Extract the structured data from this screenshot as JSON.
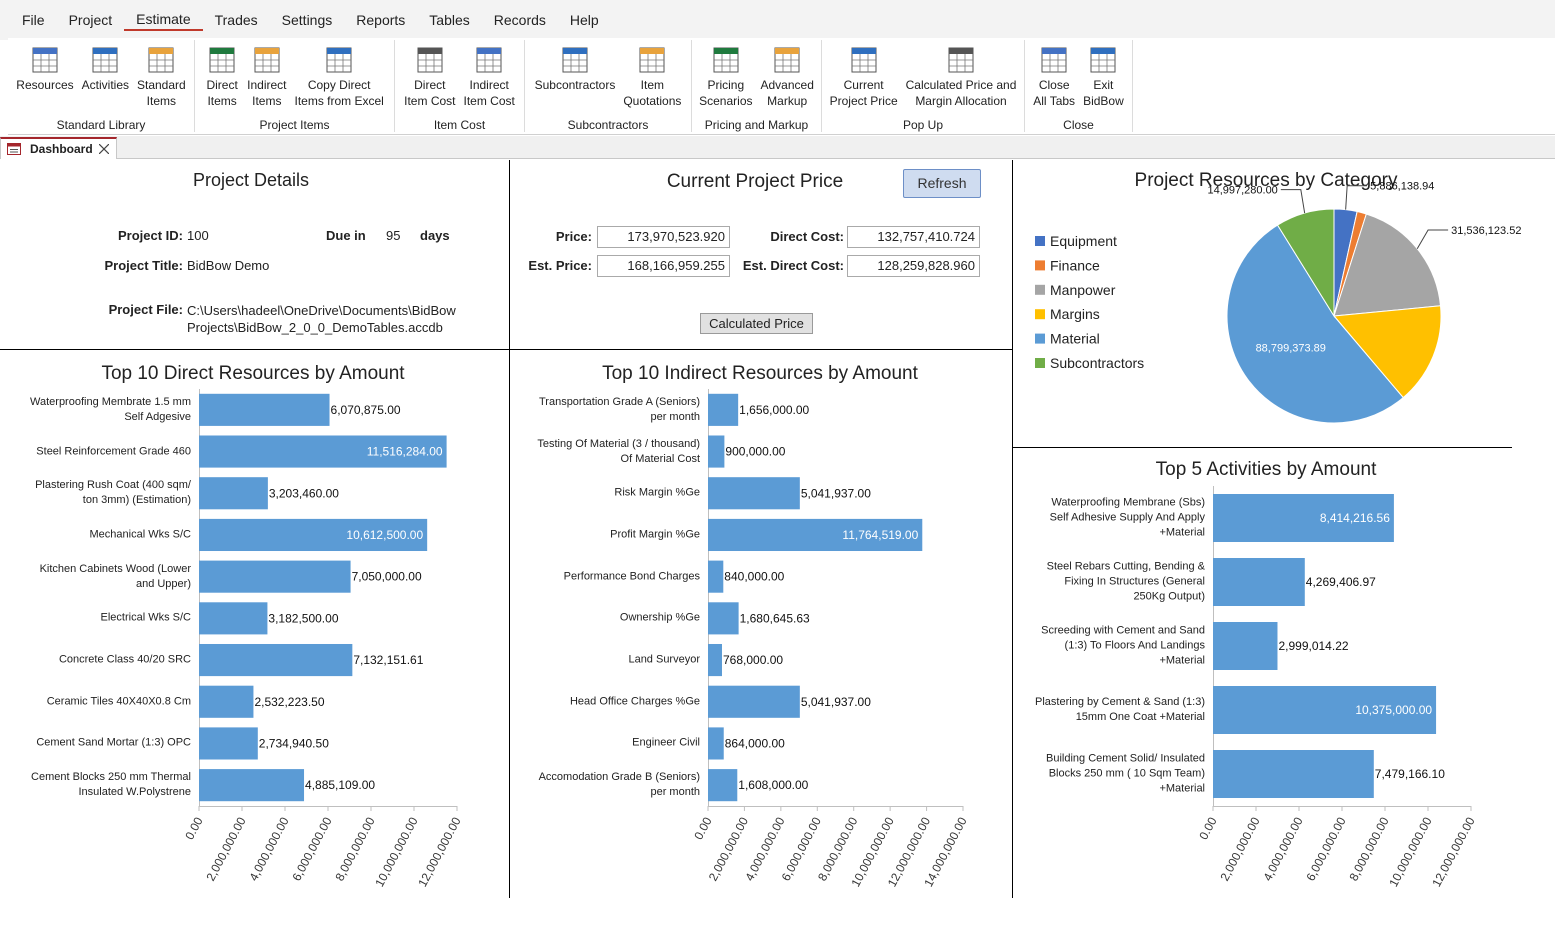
{
  "menu": [
    "File",
    "Project",
    "Estimate",
    "Trades",
    "Settings",
    "Reports",
    "Tables",
    "Records",
    "Help"
  ],
  "ribbon": {
    "groups": [
      {
        "label": "Standard Library",
        "buttons": [
          "Resources",
          "Activities",
          "Standard\nItems"
        ]
      },
      {
        "label": "Project Items",
        "buttons": [
          "Direct\nItems",
          "Indirect\nItems",
          "Copy Direct\nItems from Excel"
        ]
      },
      {
        "label": "Item Cost",
        "buttons": [
          "Direct\nItem Cost",
          "Indirect\nItem Cost"
        ]
      },
      {
        "label": "Subcontractors",
        "buttons": [
          "Subcontractors",
          "Item\nQuotations"
        ]
      },
      {
        "label": "Pricing and Markup",
        "buttons": [
          "Pricing\nScenarios",
          "Advanced\nMarkup"
        ]
      },
      {
        "label": "Pop Up",
        "buttons": [
          "Current\nProject Price",
          "Calculated Price and\nMargin Allocation"
        ]
      },
      {
        "label": "Close",
        "buttons": [
          "Close\nAll Tabs",
          "Exit\nBidBow"
        ]
      }
    ]
  },
  "tab": "Dashboard",
  "project_details": {
    "title": "Project Details",
    "id_label": "Project ID:",
    "id": 100,
    "due_label": "Due in",
    "due": 95,
    "due_unit": "days",
    "title_label": "Project Title:",
    "project_title": "BidBow Demo",
    "file_label": "Project File:",
    "file": "C:\\Users\\hadeel\\OneDrive\\Documents\\BidBow Projects\\BidBow_2_0_0_DemoTables.accdb"
  },
  "project_price": {
    "title": "Current Project Price",
    "refresh": "Refresh",
    "price_label": "Price:",
    "price": "173,970,523.920",
    "direct_cost_label": "Direct Cost:",
    "direct_cost": "132,757,410.724",
    "est_price_label": "Est. Price:",
    "est_price": "168,166,959.255",
    "est_direct_cost_label": "Est. Direct Cost:",
    "est_direct_cost": "128,259,828.960",
    "calculate": "Calculated Price"
  },
  "chart_data": [
    {
      "type": "pie",
      "title": "Project Resources by Category",
      "categories": [
        "Equipment",
        "Finance",
        "Manpower",
        "Margins",
        "Material",
        "Subcontractors"
      ],
      "values": [
        5886138.94,
        2400000,
        31536123.52,
        26000000,
        88799373.89,
        14997280.0
      ],
      "value_labels": [
        "5,886,138.94",
        null,
        "31,536,123.52",
        null,
        "88,799,373.89",
        "14,997,280.00"
      ],
      "colors": [
        "#4472c4",
        "#ed7d31",
        "#a5a5a5",
        "#ffc000",
        "#5b9bd5",
        "#70ad47"
      ],
      "legend": "left"
    },
    {
      "type": "bar",
      "orientation": "horizontal",
      "title": "Top 10 Direct Resources by Amount",
      "categories": [
        "Waterproofing Membrate 1.5 mm Self Adgesive",
        "Steel Reinforcement Grade 460",
        "Plastering Rush Coat (400 sqm/ ton 3mm) (Estimation)",
        "Mechanical Wks S/C",
        "Kitchen Cabinets Wood (Lower and Upper)",
        "Electrical Wks S/C",
        "Concrete Class 40/20 SRC",
        "Ceramic Tiles 40X40X0.8 Cm",
        "Cement Sand Mortar (1:3) OPC",
        "Cement Blocks 250 mm Thermal Insulated W.Polystrene"
      ],
      "values": [
        6070875.0,
        11516284.0,
        3203460.0,
        10612500.0,
        7050000.0,
        3182500.0,
        7132151.61,
        2532223.5,
        2734940.5,
        4885109.0
      ],
      "value_labels": [
        "6,070,875.00",
        "11,516,284.00",
        "3,203,460.00",
        "10,612,500.00",
        "7,050,000.00",
        "3,182,500.00",
        "7,132,151.61",
        "2,532,223.50",
        "2,734,940.50",
        "4,885,109.00"
      ],
      "color": "#5b9bd5",
      "xlim": [
        0,
        12000000
      ],
      "xticks": [
        {
          "value": 0,
          "label": "0.00"
        },
        {
          "value": 2000000,
          "label": "2,000,000.00"
        },
        {
          "value": 4000000,
          "label": "4,000,000.00"
        },
        {
          "value": 6000000,
          "label": "6,000,000.00"
        },
        {
          "value": 8000000,
          "label": "8,000,000.00"
        },
        {
          "value": 10000000,
          "label": "10,000,000.00"
        },
        {
          "value": 12000000,
          "label": "12,000,000.00"
        }
      ]
    },
    {
      "type": "bar",
      "orientation": "horizontal",
      "title": "Top 10 Indirect Resources by Amount",
      "categories": [
        "Transportation Grade A (Seniors) per month",
        "Testing Of Material (3 / thousand) Of Material Cost",
        "Risk Margin %Ge",
        "Profit Margin %Ge",
        "Performance Bond Charges",
        "Ownership %Ge",
        "Land Surveyor",
        "Head Office Charges %Ge",
        "Engineer Civil",
        "Accomodation Grade B (Seniors) per month"
      ],
      "values": [
        1656000.0,
        900000.0,
        5041937.0,
        11764519.0,
        840000.0,
        1680645.63,
        768000.0,
        5041937.0,
        864000.0,
        1608000.0
      ],
      "value_labels": [
        "1,656,000.00",
        "900,000.00",
        "5,041,937.00",
        "11,764,519.00",
        "840,000.00",
        "1,680,645.63",
        "768,000.00",
        "5,041,937.00",
        "864,000.00",
        "1,608,000.00"
      ],
      "color": "#5b9bd5",
      "xlim": [
        0,
        14000000
      ],
      "xticks": [
        {
          "value": 0,
          "label": "0.00"
        },
        {
          "value": 2000000,
          "label": "2,000,000.00"
        },
        {
          "value": 4000000,
          "label": "4,000,000.00"
        },
        {
          "value": 6000000,
          "label": "6,000,000.00"
        },
        {
          "value": 8000000,
          "label": "8,000,000.00"
        },
        {
          "value": 10000000,
          "label": "10,000,000.00"
        },
        {
          "value": 12000000,
          "label": "12,000,000.00"
        },
        {
          "value": 14000000,
          "label": "14,000,000.00"
        }
      ]
    },
    {
      "type": "bar",
      "orientation": "horizontal",
      "title": "Top 5 Activities by Amount",
      "categories": [
        "Waterproofing Membrane (Sbs) Self Adhesive Supply And Apply +Material",
        "Steel Rebars Cutting, Bending & Fixing In Structures (General 250Kg Output)",
        "Screeding with Cement and Sand (1:3) To Floors And Landings +Material",
        "Plastering  by Cement & Sand (1:3) 15mm One Coat +Material",
        "Building Cement Solid/ Insulated Blocks 250 mm ( 10 Sqm Team) +Material"
      ],
      "values": [
        8414216.56,
        4269406.97,
        2999014.22,
        10375000.0,
        7479166.1
      ],
      "value_labels": [
        "8,414,216.56",
        "4,269,406.97",
        "2,999,014.22",
        "10,375,000.00",
        "7,479,166.10"
      ],
      "color": "#5b9bd5",
      "xlim": [
        0,
        12000000
      ],
      "xticks": [
        {
          "value": 0,
          "label": "0.00"
        },
        {
          "value": 2000000,
          "label": "2,000,000.00"
        },
        {
          "value": 4000000,
          "label": "4,000,000.00"
        },
        {
          "value": 6000000,
          "label": "6,000,000.00"
        },
        {
          "value": 8000000,
          "label": "8,000,000.00"
        },
        {
          "value": 10000000,
          "label": "10,000,000.00"
        },
        {
          "value": 12000000,
          "label": "12,000,000.00"
        }
      ]
    }
  ]
}
